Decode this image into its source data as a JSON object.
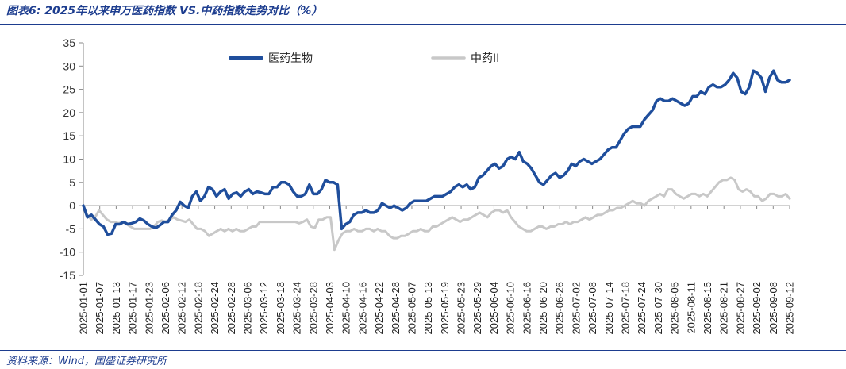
{
  "figure": {
    "title": "图表6: 2025年以来申万医药指数 VS.中药指数走势对比（%）",
    "source": "资料来源：Wind，国盛证券研究所"
  },
  "chart_data": {
    "type": "line",
    "title": "2025年以来申万医药指数 VS.中药指数走势对比（%）",
    "xlabel": "",
    "ylabel": "",
    "ylim": [
      -15,
      35
    ],
    "y_ticks": [
      -15,
      -10,
      -5,
      0,
      5,
      10,
      15,
      20,
      25,
      30,
      35
    ],
    "grid": false,
    "legend_position": "top-center",
    "x_tick_labels": [
      "2025-01-01",
      "2025-01-07",
      "2025-01-13",
      "2025-01-17",
      "2025-01-23",
      "2025-02-06",
      "2025-02-12",
      "2025-02-18",
      "2025-02-24",
      "2025-02-28",
      "2025-03-06",
      "2025-03-12",
      "2025-03-18",
      "2025-03-24",
      "2025-03-28",
      "2025-04-03",
      "2025-04-10",
      "2025-04-16",
      "2025-04-22",
      "2025-04-28",
      "2025-05-07",
      "2025-05-13",
      "2025-05-19",
      "2025-05-23",
      "2025-05-29",
      "2025-06-04",
      "2025-06-10",
      "2025-06-16",
      "2025-06-20",
      "2025-06-26",
      "2025-07-02",
      "2025-07-08",
      "2025-07-14",
      "2025-07-18",
      "2025-07-24",
      "2025-07-30",
      "2025-08-05",
      "2025-08-11",
      "2025-08-15",
      "2025-08-21",
      "2025-08-27",
      "2025-09-02",
      "2025-09-08",
      "2025-09-12"
    ],
    "series": [
      {
        "name": "医药生物",
        "color": "#1f4e9c",
        "values": [
          0.0,
          -2.5,
          -2.0,
          -3.0,
          -4.0,
          -4.5,
          -6.2,
          -6.0,
          -4.0,
          -4.0,
          -3.5,
          -4.0,
          -3.8,
          -3.5,
          -2.8,
          -3.2,
          -4.0,
          -4.5,
          -4.8,
          -4.2,
          -3.5,
          -3.5,
          -2.0,
          -1.0,
          0.8,
          0.0,
          -0.5,
          2.0,
          3.0,
          1.0,
          2.0,
          4.0,
          3.5,
          2.0,
          3.0,
          3.5,
          1.5,
          2.5,
          2.8,
          2.0,
          3.0,
          3.5,
          2.5,
          3.0,
          2.8,
          2.5,
          2.5,
          4.0,
          4.0,
          5.0,
          5.0,
          4.5,
          3.0,
          2.0,
          2.0,
          2.5,
          4.5,
          2.5,
          2.5,
          3.5,
          5.5,
          5.0,
          5.0,
          4.5,
          -5.0,
          -4.0,
          -3.5,
          -2.0,
          -1.5,
          -1.5,
          -1.0,
          -1.5,
          -1.5,
          -1.0,
          0.5,
          0.0,
          -0.5,
          0.0,
          -0.5,
          -1.0,
          -0.5,
          0.5,
          1.0,
          1.0,
          1.0,
          1.0,
          1.5,
          2.0,
          2.0,
          2.0,
          2.5,
          3.0,
          4.0,
          4.5,
          4.0,
          4.5,
          3.5,
          4.0,
          6.0,
          6.5,
          7.5,
          8.5,
          9.0,
          8.0,
          8.5,
          10.0,
          10.5,
          10.0,
          11.5,
          9.5,
          9.0,
          8.0,
          6.5,
          5.0,
          4.5,
          5.5,
          6.5,
          7.0,
          6.0,
          6.5,
          7.5,
          9.0,
          8.5,
          9.5,
          10.0,
          9.5,
          9.0,
          9.5,
          10.0,
          11.0,
          12.0,
          12.5,
          12.5,
          14.0,
          15.5,
          16.5,
          17.0,
          17.0,
          17.0,
          18.5,
          19.5,
          20.5,
          22.5,
          23.0,
          22.5,
          22.5,
          23.0,
          22.5,
          22.0,
          21.5,
          22.0,
          23.5,
          23.5,
          24.5,
          24.0,
          25.5,
          26.0,
          25.5,
          25.5,
          26.0,
          27.0,
          28.5,
          27.5,
          24.5,
          24.0,
          25.5,
          29.0,
          28.5,
          27.5,
          24.5,
          27.5,
          29.0,
          27.0,
          26.5,
          26.5,
          27.0
        ]
      },
      {
        "name": "中药II",
        "color": "#c8c8c8",
        "values": [
          0.0,
          -2.0,
          -3.0,
          -2.5,
          -1.0,
          -2.0,
          -3.0,
          -3.5,
          -3.5,
          -3.8,
          -3.5,
          -4.0,
          -4.5,
          -5.0,
          -5.0,
          -5.0,
          -5.0,
          -5.0,
          -4.5,
          -3.5,
          -3.2,
          -3.5,
          -3.0,
          -2.5,
          -3.0,
          -3.2,
          -3.5,
          -3.0,
          -4.0,
          -5.0,
          -5.0,
          -5.5,
          -6.5,
          -6.0,
          -5.5,
          -5.0,
          -5.5,
          -5.0,
          -5.5,
          -5.0,
          -5.5,
          -5.5,
          -5.0,
          -4.5,
          -4.5,
          -3.5,
          -3.5,
          -3.5,
          -3.5,
          -3.5,
          -3.5,
          -3.5,
          -3.5,
          -3.5,
          -3.5,
          -3.8,
          -3.5,
          -3.0,
          -4.5,
          -4.8,
          -3.0,
          -3.0,
          -2.5,
          -2.5,
          -9.5,
          -7.5,
          -6.0,
          -5.5,
          -5.5,
          -5.0,
          -5.5,
          -5.5,
          -5.0,
          -5.0,
          -5.5,
          -5.0,
          -5.5,
          -5.5,
          -6.5,
          -7.0,
          -7.0,
          -6.5,
          -6.5,
          -6.0,
          -5.5,
          -5.5,
          -5.0,
          -5.5,
          -5.5,
          -4.5,
          -4.5,
          -4.0,
          -3.5,
          -3.0,
          -2.5,
          -3.0,
          -3.5,
          -3.0,
          -3.0,
          -2.5,
          -2.0,
          -1.5,
          -2.0,
          -2.5,
          -1.5,
          -1.0,
          -1.0,
          -1.5,
          -1.0,
          -2.5,
          -3.5,
          -4.5,
          -5.0,
          -5.5,
          -5.5,
          -5.0,
          -4.5,
          -4.5,
          -5.0,
          -4.5,
          -4.5,
          -4.0,
          -4.0,
          -3.5,
          -4.0,
          -3.5,
          -3.5,
          -3.0,
          -2.5,
          -3.0,
          -2.5,
          -2.0,
          -2.0,
          -1.5,
          -1.0,
          -1.0,
          -0.5,
          -0.5,
          0.0,
          0.5,
          1.0,
          0.5,
          0.5,
          0.0,
          1.0,
          1.5,
          2.0,
          2.5,
          2.0,
          3.5,
          3.5,
          2.5,
          2.0,
          1.5,
          2.0,
          2.5,
          2.5,
          2.0,
          2.5,
          2.0,
          3.0,
          4.0,
          5.0,
          5.5,
          5.5,
          6.0,
          5.5,
          3.5,
          3.0,
          3.5,
          3.0,
          2.0,
          2.0,
          1.0,
          1.5,
          2.5,
          2.5,
          2.0,
          2.0,
          2.5,
          1.5
        ]
      }
    ]
  }
}
